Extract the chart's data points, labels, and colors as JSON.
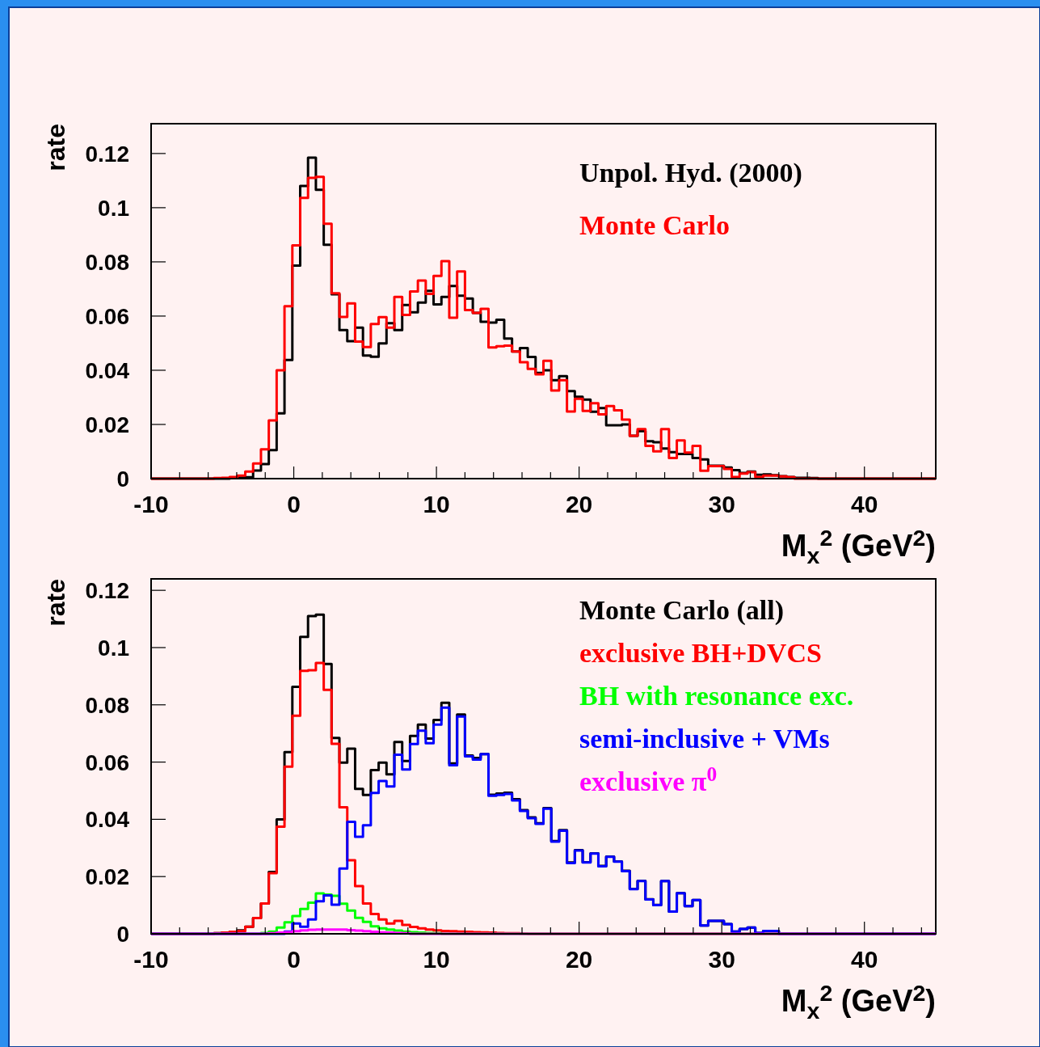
{
  "chart_data": [
    {
      "type": "histogram",
      "xlabel": "M$_{x}$$^{2}$ (GeV$^{2}$)",
      "ylabel": "rate",
      "legend": "top right",
      "xlim": [
        -10,
        45
      ],
      "ylim": [
        0,
        0.131
      ],
      "xticks": [
        -10,
        {
          "value": -8,
          "label": null
        },
        {
          "value": -6,
          "label": null
        },
        {
          "value": -4,
          "label": null
        },
        {
          "value": -2,
          "label": null
        },
        0,
        {
          "value": 2,
          "label": null
        },
        {
          "value": 4,
          "label": null
        },
        {
          "value": 6,
          "label": null
        },
        {
          "value": 8,
          "label": null
        },
        10,
        {
          "value": 12,
          "label": null
        },
        {
          "value": 14,
          "label": null
        },
        {
          "value": 16,
          "label": null
        },
        {
          "value": 18,
          "label": null
        },
        20,
        {
          "value": 22,
          "label": null
        },
        {
          "value": 24,
          "label": null
        },
        {
          "value": 26,
          "label": null
        },
        {
          "value": 28,
          "label": null
        },
        30,
        {
          "value": 32,
          "label": null
        },
        {
          "value": 34,
          "label": null
        },
        {
          "value": 36,
          "label": null
        },
        {
          "value": 38,
          "label": null
        },
        40,
        {
          "value": 42,
          "label": null
        },
        {
          "value": 44,
          "label": null
        }
      ],
      "yticks": [
        0,
        0.02,
        0.04,
        0.06,
        0.08,
        0.1,
        0.12
      ],
      "bins": [
        -10,
        -9.45,
        -8.9,
        -8.35,
        -7.8,
        -7.25,
        -6.7,
        -6.15,
        -5.6,
        -5.05,
        -4.5,
        -3.95,
        -3.4,
        -2.85,
        -2.3,
        -1.75,
        -1.2,
        -0.65,
        -0.1,
        0.45,
        1,
        1.55,
        2.1,
        2.65,
        3.2,
        3.75,
        4.3,
        4.85,
        5.4,
        5.95,
        6.5,
        7.05,
        7.6,
        8.15,
        8.7,
        9.25,
        9.8,
        10.35,
        10.9,
        11.45,
        12,
        12.55,
        13.1,
        13.65,
        14.2,
        14.75,
        15.3,
        15.85,
        16.4,
        16.95,
        17.5,
        18.05,
        18.6,
        19.15,
        19.7,
        20.25,
        20.8,
        21.35,
        21.9,
        22.45,
        23,
        23.55,
        24.1,
        24.65,
        25.2,
        25.75,
        26.3,
        26.85,
        27.4,
        27.95,
        28.5,
        29.05,
        29.6,
        30.15,
        30.7,
        31.25,
        31.8,
        32.35,
        32.9,
        33.45,
        34,
        34.55,
        35.1,
        35.65,
        36.2,
        36.75,
        37.3,
        37.85,
        38.4,
        38.95,
        39.5,
        40.05,
        40.6,
        41.15,
        41.7,
        42.25,
        42.8,
        43.35,
        43.9,
        44.45,
        45
      ],
      "series": [
        {
          "name": "Unpol. Hyd. (2000)",
          "color": "#000000",
          "values": [
            0,
            0,
            0,
            0,
            0,
            0,
            0,
            0,
            0,
            0,
            0.0003,
            0.0004,
            0.0005,
            0.003,
            0.0054,
            0.0105,
            0.0241,
            0.0438,
            0.0786,
            0.108,
            0.1185,
            0.1066,
            0.0863,
            0.068,
            0.0548,
            0.0507,
            0.0557,
            0.0454,
            0.045,
            0.0499,
            0.0574,
            0.0548,
            0.0641,
            0.0614,
            0.065,
            0.0693,
            0.0643,
            0.0671,
            0.0711,
            0.0675,
            0.0665,
            0.0612,
            0.0579,
            0.0576,
            0.0586,
            0.0517,
            0.0469,
            0.0482,
            0.0449,
            0.039,
            0.04,
            0.0363,
            0.0378,
            0.0323,
            0.0302,
            0.0292,
            0.0247,
            0.026,
            0.0197,
            0.0197,
            0.02,
            0.0158,
            0.0175,
            0.0138,
            0.0134,
            0.0111,
            0.0098,
            0.0091,
            0.0091,
            0.0076,
            0.0071,
            0.0048,
            0.0048,
            0.0041,
            0.0031,
            0.0021,
            0.0026,
            0.0014,
            0.0016,
            0.0013,
            0.0009,
            0.0006,
            0.0003,
            0.0003,
            0.0002,
            0,
            0,
            0,
            0,
            0,
            0,
            0,
            0,
            0,
            0,
            0,
            0,
            0,
            0,
            0
          ]
        },
        {
          "name": "Monte Carlo",
          "color": "#ff0000",
          "values": [
            0,
            0,
            0,
            0,
            0,
            0,
            0,
            0,
            0.0002,
            0.0003,
            0.0006,
            0.0011,
            0.0026,
            0.0056,
            0.0108,
            0.0215,
            0.04,
            0.0636,
            0.0861,
            0.1036,
            0.111,
            0.1114,
            0.0941,
            0.0684,
            0.0597,
            0.0647,
            0.0506,
            0.0486,
            0.0571,
            0.0596,
            0.0557,
            0.0671,
            0.0604,
            0.0691,
            0.0731,
            0.0682,
            0.0748,
            0.0803,
            0.0594,
            0.0765,
            0.0622,
            0.0612,
            0.0627,
            0.0484,
            0.0489,
            0.0491,
            0.0469,
            0.043,
            0.0405,
            0.0385,
            0.0435,
            0.0325,
            0.0363,
            0.0248,
            0.0295,
            0.025,
            0.0278,
            0.0237,
            0.0268,
            0.0252,
            0.0218,
            0.0158,
            0.0183,
            0.0121,
            0.0101,
            0.0183,
            0.0076,
            0.0141,
            0.0096,
            0.0121,
            0.0029,
            0.0046,
            0.0046,
            0.0036,
            0.0006,
            0.0019,
            0.0024,
            0.0006,
            0.0011,
            0.0011,
            0.0008,
            0.0005,
            0,
            0,
            0,
            0,
            0,
            0,
            0,
            0,
            0,
            0,
            0,
            0,
            0,
            0,
            0,
            0,
            0,
            0
          ]
        }
      ]
    },
    {
      "type": "histogram",
      "xlabel": "M$_{x}$$^{2}$ (GeV$^{2}$)",
      "ylabel": "rate",
      "legend": "top right",
      "xlim": [
        -10,
        45
      ],
      "ylim": [
        0,
        0.124
      ],
      "xticks": [
        -10,
        {
          "value": -8,
          "label": null
        },
        {
          "value": -6,
          "label": null
        },
        {
          "value": -4,
          "label": null
        },
        {
          "value": -2,
          "label": null
        },
        0,
        {
          "value": 2,
          "label": null
        },
        {
          "value": 4,
          "label": null
        },
        {
          "value": 6,
          "label": null
        },
        {
          "value": 8,
          "label": null
        },
        10,
        {
          "value": 12,
          "label": null
        },
        {
          "value": 14,
          "label": null
        },
        {
          "value": 16,
          "label": null
        },
        {
          "value": 18,
          "label": null
        },
        20,
        {
          "value": 22,
          "label": null
        },
        {
          "value": 24,
          "label": null
        },
        {
          "value": 26,
          "label": null
        },
        {
          "value": 28,
          "label": null
        },
        30,
        {
          "value": 32,
          "label": null
        },
        {
          "value": 34,
          "label": null
        },
        {
          "value": 36,
          "label": null
        },
        {
          "value": 38,
          "label": null
        },
        40,
        {
          "value": 42,
          "label": null
        },
        {
          "value": 44,
          "label": null
        }
      ],
      "yticks": [
        0,
        0.02,
        0.04,
        0.06,
        0.08,
        0.1,
        0.12
      ],
      "bins": [
        -10,
        -9.45,
        -8.9,
        -8.35,
        -7.8,
        -7.25,
        -6.7,
        -6.15,
        -5.6,
        -5.05,
        -4.5,
        -3.95,
        -3.4,
        -2.85,
        -2.3,
        -1.75,
        -1.2,
        -0.65,
        -0.1,
        0.45,
        1,
        1.55,
        2.1,
        2.65,
        3.2,
        3.75,
        4.3,
        4.85,
        5.4,
        5.95,
        6.5,
        7.05,
        7.6,
        8.15,
        8.7,
        9.25,
        9.8,
        10.35,
        10.9,
        11.45,
        12,
        12.55,
        13.1,
        13.65,
        14.2,
        14.75,
        15.3,
        15.85,
        16.4,
        16.95,
        17.5,
        18.05,
        18.6,
        19.15,
        19.7,
        20.25,
        20.8,
        21.35,
        21.9,
        22.45,
        23,
        23.55,
        24.1,
        24.65,
        25.2,
        25.75,
        26.3,
        26.85,
        27.4,
        27.95,
        28.5,
        29.05,
        29.6,
        30.15,
        30.7,
        31.25,
        31.8,
        32.35,
        32.9,
        33.45,
        34,
        34.55,
        35.1,
        35.65,
        36.2,
        36.75,
        37.3,
        37.85,
        38.4,
        38.95,
        39.5,
        40.05,
        40.6,
        41.15,
        41.7,
        42.25,
        42.8,
        43.35,
        43.9,
        44.45,
        45
      ],
      "series": [
        {
          "name": "Monte Carlo (all)",
          "color": "#000000",
          "values": [
            0,
            0,
            0,
            0,
            0,
            0,
            0,
            0,
            0.0002,
            0.0004,
            0.0007,
            0.0012,
            0.0025,
            0.0055,
            0.0106,
            0.0216,
            0.04,
            0.0635,
            0.0863,
            0.1037,
            0.111,
            0.1115,
            0.0943,
            0.0684,
            0.0598,
            0.0647,
            0.0506,
            0.0485,
            0.0572,
            0.0598,
            0.0557,
            0.067,
            0.0604,
            0.0691,
            0.0731,
            0.0682,
            0.0747,
            0.0807,
            0.0595,
            0.0766,
            0.0623,
            0.0614,
            0.0628,
            0.0486,
            0.049,
            0.0493,
            0.047,
            0.0432,
            0.0407,
            0.0386,
            0.0439,
            0.0324,
            0.0362,
            0.0249,
            0.0292,
            0.025,
            0.0281,
            0.0237,
            0.027,
            0.0253,
            0.022,
            0.0157,
            0.0185,
            0.0121,
            0.0101,
            0.0184,
            0.0078,
            0.0142,
            0.0097,
            0.0118,
            0.0029,
            0.0045,
            0.0045,
            0.0034,
            0.0008,
            0.0017,
            0.0022,
            0.0003,
            0.001,
            0.001,
            0,
            0,
            0,
            0,
            0,
            0,
            0,
            0,
            0,
            0,
            0,
            0,
            0,
            0,
            0,
            0,
            0,
            0,
            0,
            0
          ]
        },
        {
          "name": "exclusive BH+DVCS",
          "color": "#ff0000",
          "values": [
            0,
            0,
            0,
            0,
            0,
            0,
            0,
            0,
            0.0002,
            0.0004,
            0.0007,
            0.001,
            0.0025,
            0.0055,
            0.0106,
            0.0212,
            0.0374,
            0.0584,
            0.0762,
            0.0919,
            0.0921,
            0.0946,
            0.0852,
            0.0664,
            0.0442,
            0.0257,
            0.0167,
            0.0106,
            0.0069,
            0.005,
            0.0036,
            0.0045,
            0.0031,
            0.0024,
            0.0019,
            0.0015,
            0.0012,
            0.001,
            0.0009,
            0.0008,
            0.0007,
            0.0006,
            0.0005,
            0.0004,
            0.0003,
            0.0002,
            0.0002,
            0.0001,
            0,
            0,
            0,
            0,
            0,
            0,
            0,
            0,
            0,
            0,
            0,
            0,
            0,
            0,
            0,
            0,
            0,
            0,
            0,
            0,
            0,
            0,
            0,
            0,
            0,
            0,
            0,
            0,
            0,
            0,
            0,
            0,
            0,
            0,
            0,
            0,
            0,
            0,
            0,
            0,
            0,
            0,
            0,
            0,
            0,
            0,
            0,
            0,
            0,
            0,
            0,
            0
          ]
        },
        {
          "name": "BH with resonance exc.",
          "color": "#00ff00",
          "values": [
            0,
            0,
            0,
            0,
            0,
            0,
            0,
            0,
            0,
            0,
            0,
            0,
            0,
            0,
            0.0003,
            0.0008,
            0.0022,
            0.004,
            0.0062,
            0.0087,
            0.0109,
            0.0141,
            0.0137,
            0.0133,
            0.0105,
            0.0081,
            0.0056,
            0.0042,
            0.0026,
            0.0019,
            0.0015,
            0.0011,
            0.0008,
            0.0006,
            0.0004,
            0.0003,
            0.0002,
            0,
            0,
            0,
            0,
            0,
            0,
            0,
            0,
            0,
            0,
            0,
            0,
            0,
            0,
            0,
            0,
            0,
            0,
            0,
            0,
            0,
            0,
            0,
            0,
            0,
            0,
            0,
            0,
            0,
            0,
            0,
            0,
            0,
            0,
            0,
            0,
            0,
            0,
            0,
            0,
            0,
            0,
            0,
            0,
            0,
            0,
            0,
            0,
            0,
            0,
            0,
            0,
            0,
            0,
            0,
            0,
            0,
            0,
            0,
            0,
            0,
            0,
            0
          ]
        },
        {
          "name": "semi-inclusive + VMs",
          "color": "#0000ff",
          "values": [
            0,
            0,
            0,
            0,
            0,
            0,
            0,
            0,
            0,
            0,
            0,
            0,
            0,
            0,
            0,
            0,
            0,
            0.0008,
            0.0036,
            0.0025,
            0.005,
            0.0114,
            0.0134,
            0.0102,
            0.0228,
            0.0391,
            0.0339,
            0.0379,
            0.0492,
            0.0534,
            0.0515,
            0.0626,
            0.0574,
            0.0663,
            0.071,
            0.0666,
            0.0731,
            0.079,
            0.0589,
            0.0759,
            0.062,
            0.0609,
            0.0628,
            0.0482,
            0.0485,
            0.0489,
            0.0466,
            0.0429,
            0.0404,
            0.0384,
            0.0437,
            0.0322,
            0.036,
            0.0247,
            0.0291,
            0.0249,
            0.028,
            0.0236,
            0.0269,
            0.0252,
            0.0219,
            0.0156,
            0.0184,
            0.012,
            0.01,
            0.0184,
            0.0078,
            0.0142,
            0.0097,
            0.0118,
            0.0029,
            0.0045,
            0.0045,
            0.0034,
            0.0008,
            0.0017,
            0.0022,
            0.0003,
            0.001,
            0.001,
            0,
            0,
            0,
            0,
            0,
            0,
            0,
            0,
            0,
            0,
            0,
            0,
            0,
            0,
            0,
            0,
            0,
            0,
            0,
            0
          ]
        },
        {
          "name": "exclusive π$^{0}$",
          "color": "#ff00ff",
          "values": [
            0,
            0,
            0,
            0,
            0,
            0,
            0,
            0,
            0,
            0,
            0,
            0,
            0,
            0,
            0,
            0.0002,
            0.0004,
            0.0006,
            0.0009,
            0.0012,
            0.0014,
            0.0015,
            0.0015,
            0.0015,
            0.0015,
            0.0013,
            0.0011,
            0.0009,
            0.0007,
            0.0005,
            0.0004,
            0.0003,
            0.0002,
            0,
            0,
            0,
            0,
            0,
            0,
            0,
            0,
            0,
            0,
            0,
            0,
            0,
            0,
            0,
            0,
            0,
            0,
            0,
            0,
            0,
            0,
            0,
            0,
            0,
            0,
            0,
            0,
            0,
            0,
            0,
            0,
            0,
            0,
            0,
            0,
            0,
            0,
            0,
            0,
            0,
            0,
            0,
            0,
            0,
            0,
            0,
            0,
            0,
            0,
            0,
            0,
            0,
            0,
            0,
            0,
            0,
            0,
            0,
            0,
            0,
            0,
            0,
            0,
            0,
            0,
            0
          ]
        }
      ]
    }
  ]
}
